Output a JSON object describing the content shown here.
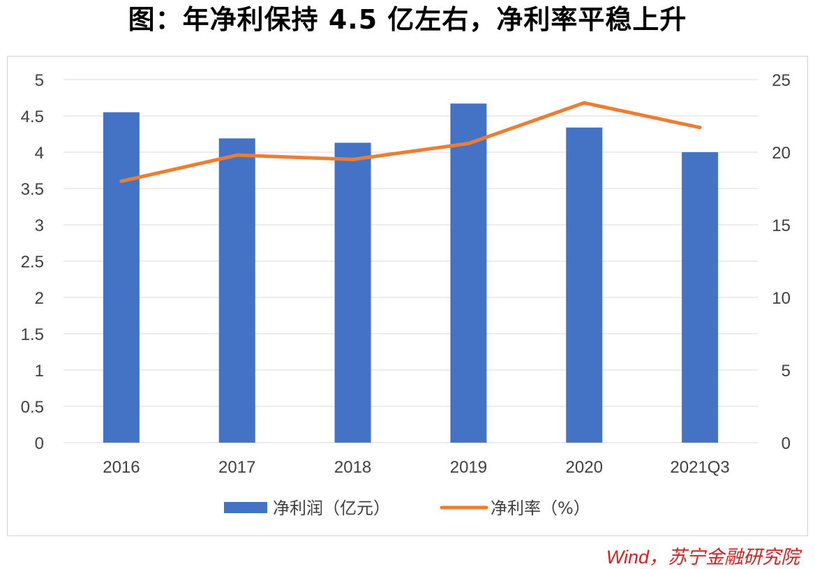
{
  "title": "图：年净利保持 4.5 亿左右，净利率平稳上升",
  "source": "Wind，苏宁金融研究院",
  "colors": {
    "bar": "#4472c4",
    "line": "#ed7d31",
    "grid": "#d9d9d9"
  },
  "chart_data": {
    "type": "bar+line",
    "categories": [
      "2016",
      "2017",
      "2018",
      "2019",
      "2020",
      "2021Q3"
    ],
    "series": [
      {
        "name": "净利润（亿元）",
        "type": "bar",
        "axis": "left",
        "values": [
          4.55,
          4.19,
          4.13,
          4.67,
          4.34,
          4.0
        ]
      },
      {
        "name": "净利率（%）",
        "type": "line",
        "axis": "right",
        "values": [
          18.0,
          19.8,
          19.5,
          20.6,
          23.4,
          21.7
        ]
      }
    ],
    "y_left": {
      "min": 0,
      "max": 5,
      "ticks": [
        "0",
        "0.5",
        "1",
        "1.5",
        "2",
        "2.5",
        "3",
        "3.5",
        "4",
        "4.5",
        "5"
      ]
    },
    "y_right": {
      "min": 0,
      "max": 25,
      "ticks": [
        "0",
        "5",
        "10",
        "15",
        "20",
        "25"
      ]
    },
    "legend": {
      "position": "bottom",
      "items": [
        "净利润（亿元）",
        "净利率（%）"
      ]
    },
    "grid": true
  }
}
